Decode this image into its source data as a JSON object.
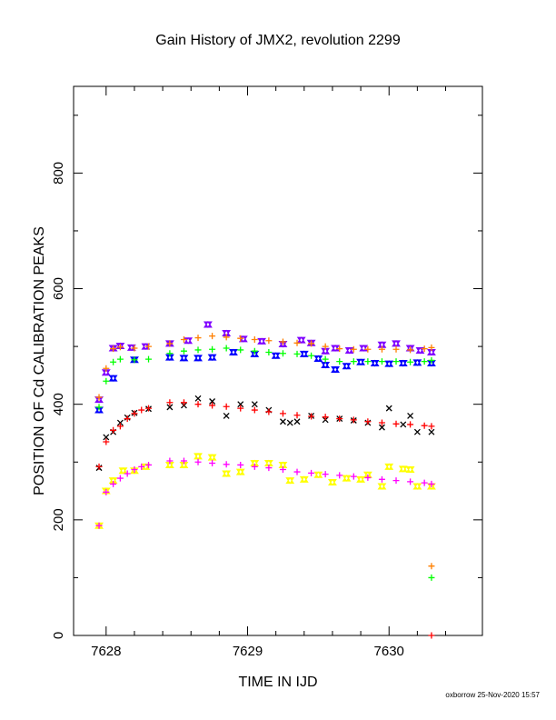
{
  "chart_data": {
    "type": "scatter",
    "title": "Gain History of JMX2, revolution 2299",
    "xlabel": "TIME IN IJD",
    "ylabel": "POSITION OF Cd CALIBRATION PEAKS",
    "xlim": [
      7627.77,
      7630.66
    ],
    "ylim": [
      0,
      950
    ],
    "x_ticks": [
      7628,
      7629,
      7630
    ],
    "y_ticks": [
      0,
      200,
      400,
      600,
      800
    ],
    "grid": false,
    "footer": "oxborrow 25-Nov-2020 15:57",
    "series": [
      {
        "color": "#7f00ff",
        "marker": "triangle",
        "x": [
          7627.95,
          7628.0,
          7628.05,
          7628.1,
          7628.18,
          7628.28,
          7628.45,
          7628.58,
          7628.72,
          7628.85,
          7628.97,
          7629.1,
          7629.25,
          7629.38,
          7629.45,
          7629.55,
          7629.62,
          7629.72,
          7629.82,
          7629.95,
          7630.05,
          7630.15,
          7630.22,
          7630.3
        ],
        "values": [
          408,
          455,
          497,
          501,
          498,
          500,
          505,
          510,
          538,
          523,
          513,
          509,
          504,
          511,
          506,
          492,
          497,
          493,
          497,
          503,
          505,
          497,
          493,
          490
        ]
      },
      {
        "color": "#0000ff",
        "marker": "triangle",
        "x": [
          7627.95,
          7628.05,
          7628.2,
          7628.45,
          7628.55,
          7628.65,
          7628.75,
          7628.9,
          7629.05,
          7629.2,
          7629.4,
          7629.5,
          7629.55,
          7629.62,
          7629.7,
          7629.8,
          7629.9,
          7630.0,
          7630.1,
          7630.2,
          7630.3
        ],
        "values": [
          390,
          445,
          477,
          481,
          480,
          480,
          481,
          490,
          487,
          484,
          487,
          479,
          468,
          460,
          466,
          473,
          471,
          470,
          471,
          472,
          471
        ]
      },
      {
        "color": "#ff7f00",
        "marker": "plus",
        "x": [
          7627.95,
          7628.0,
          7628.05,
          7628.1,
          7628.2,
          7628.3,
          7628.45,
          7628.55,
          7628.65,
          7628.75,
          7628.85,
          7628.95,
          7629.05,
          7629.15,
          7629.25,
          7629.35,
          7629.45,
          7629.55,
          7629.65,
          7629.75,
          7629.85,
          7629.95,
          7630.05,
          7630.15,
          7630.25,
          7630.3,
          7630.3
        ],
        "values": [
          412,
          462,
          496,
          499,
          497,
          500,
          505,
          512,
          515,
          518,
          516,
          514,
          512,
          510,
          508,
          506,
          505,
          500,
          496,
          495,
          495,
          495,
          495,
          494,
          496,
          498,
          120
        ]
      },
      {
        "color": "#00ff00",
        "marker": "plus",
        "x": [
          7627.95,
          7628.0,
          7628.05,
          7628.1,
          7628.2,
          7628.3,
          7628.45,
          7628.55,
          7628.65,
          7628.75,
          7628.85,
          7628.95,
          7629.05,
          7629.15,
          7629.25,
          7629.35,
          7629.45,
          7629.55,
          7629.65,
          7629.75,
          7629.85,
          7629.95,
          7630.05,
          7630.15,
          7630.25,
          7630.3,
          7630.3
        ],
        "values": [
          395,
          440,
          473,
          478,
          477,
          478,
          488,
          492,
          494,
          495,
          497,
          494,
          492,
          490,
          488,
          487,
          484,
          478,
          474,
          474,
          474,
          474,
          474,
          473,
          474,
          476,
          100
        ]
      },
      {
        "color": "#000000",
        "marker": "cross",
        "x": [
          7627.95,
          7628.0,
          7628.05,
          7628.1,
          7628.15,
          7628.2,
          7628.3,
          7628.45,
          7628.55,
          7628.65,
          7628.75,
          7628.85,
          7628.95,
          7629.05,
          7629.15,
          7629.25,
          7629.3,
          7629.35,
          7629.45,
          7629.55,
          7629.65,
          7629.75,
          7629.85,
          7629.95,
          7630.0,
          7630.1,
          7630.15,
          7630.2,
          7630.3
        ],
        "values": [
          290,
          343,
          352,
          368,
          377,
          385,
          392,
          395,
          398,
          410,
          405,
          380,
          400,
          400,
          390,
          370,
          368,
          370,
          380,
          373,
          375,
          372,
          368,
          360,
          393,
          365,
          380,
          352,
          352
        ]
      },
      {
        "color": "#ff0000",
        "marker": "plus",
        "x": [
          7627.95,
          7628.0,
          7628.05,
          7628.1,
          7628.15,
          7628.2,
          7628.25,
          7628.3,
          7628.45,
          7628.55,
          7628.65,
          7628.75,
          7628.85,
          7628.95,
          7629.05,
          7629.15,
          7629.25,
          7629.35,
          7629.45,
          7629.55,
          7629.65,
          7629.75,
          7629.85,
          7629.95,
          7630.05,
          7630.15,
          7630.25,
          7630.3,
          7630.3
        ],
        "values": [
          292,
          335,
          355,
          362,
          375,
          384,
          390,
          393,
          403,
          403,
          400,
          398,
          396,
          393,
          390,
          387,
          384,
          381,
          379,
          378,
          375,
          373,
          370,
          368,
          366,
          365,
          363,
          362,
          0
        ]
      },
      {
        "color": "#ffff00",
        "marker": "triangle",
        "x": [
          7627.95,
          7628.0,
          7628.05,
          7628.12,
          7628.2,
          7628.28,
          7628.45,
          7628.55,
          7628.65,
          7628.75,
          7628.85,
          7628.95,
          7629.05,
          7629.15,
          7629.25,
          7629.3,
          7629.4,
          7629.5,
          7629.6,
          7629.7,
          7629.8,
          7629.85,
          7629.95,
          7630.0,
          7630.1,
          7630.15,
          7630.2,
          7630.3
        ],
        "values": [
          190,
          250,
          268,
          285,
          285,
          292,
          295,
          295,
          310,
          308,
          280,
          283,
          298,
          298,
          295,
          268,
          270,
          278,
          265,
          272,
          270,
          278,
          258,
          292,
          288,
          287,
          258,
          258
        ]
      },
      {
        "color": "#ff00ff",
        "marker": "plus",
        "x": [
          7627.95,
          7628.0,
          7628.05,
          7628.1,
          7628.15,
          7628.2,
          7628.25,
          7628.3,
          7628.45,
          7628.55,
          7628.65,
          7628.75,
          7628.85,
          7628.95,
          7629.05,
          7629.15,
          7629.25,
          7629.35,
          7629.45,
          7629.55,
          7629.65,
          7629.75,
          7629.85,
          7629.95,
          7630.05,
          7630.15,
          7630.25,
          7630.3
        ],
        "values": [
          190,
          248,
          262,
          272,
          280,
          287,
          292,
          295,
          302,
          302,
          300,
          298,
          296,
          295,
          292,
          290,
          287,
          283,
          281,
          279,
          277,
          275,
          273,
          270,
          268,
          266,
          264,
          262
        ]
      }
    ]
  }
}
